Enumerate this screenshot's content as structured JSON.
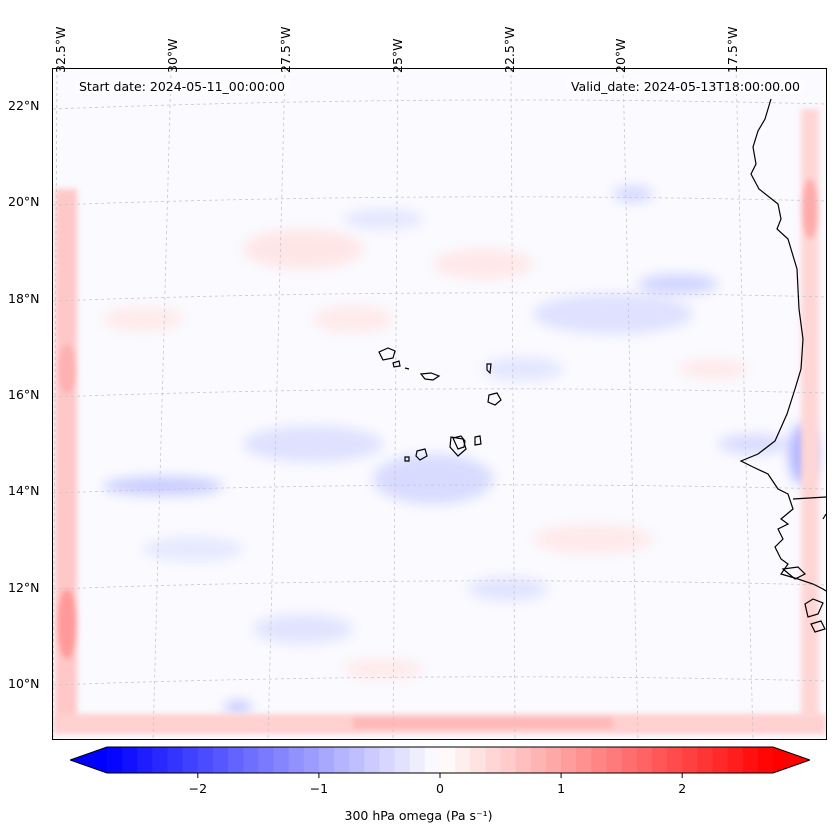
{
  "start_date": "Start date: 2024-05-11_00:00:00",
  "valid_date": "Valid_date: 2024-05-13T18:00:00.00",
  "lon_labels": [
    "32.5°W",
    "30°W",
    "27.5°W",
    "25°W",
    "22.5°W",
    "20°W",
    "17.5°W"
  ],
  "lat_labels": [
    "22°N",
    "20°N",
    "18°N",
    "16°N",
    "14°N",
    "12°N",
    "10°N"
  ],
  "colorbar": {
    "ticks": [
      "−2",
      "−1",
      "0",
      "1",
      "2"
    ],
    "tick_values": [
      -2,
      -1,
      0,
      1,
      2
    ],
    "range": [
      -2.75,
      2.75
    ],
    "label": "300 hPa omega (Pa s⁻¹)",
    "cmap": "bwr",
    "min_color": "#0000ff",
    "mid_color": "#ffffff",
    "max_color": "#ff0000"
  },
  "colors": {
    "coastline": "#000000",
    "gridline": "#c8c8c8",
    "frame": "#000000"
  }
}
